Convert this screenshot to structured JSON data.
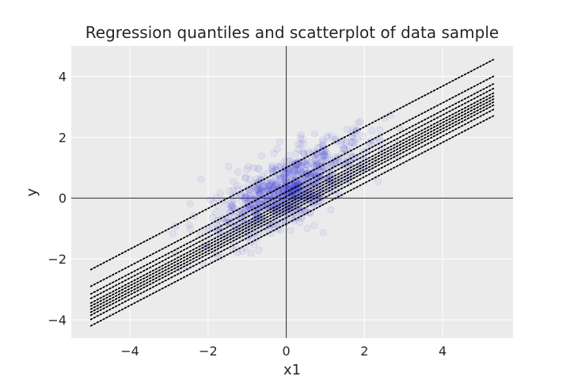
{
  "chart_data": {
    "type": "scatter",
    "title": "Regression quantiles and scatterplot of data sample",
    "xlabel": "x1",
    "ylabel": "y",
    "xlim": [
      -5.5,
      5.8
    ],
    "ylim": [
      -4.6,
      5.0
    ],
    "x_ticks": [
      -4,
      -2,
      0,
      2,
      4
    ],
    "y_ticks": [
      -4,
      -2,
      0,
      2,
      4
    ],
    "x_tick_labels": [
      "−4",
      "−2",
      "0",
      "2",
      "4"
    ],
    "y_tick_labels": [
      "−4",
      "−2",
      "0",
      "2",
      "4"
    ],
    "grid": true,
    "reference_lines": {
      "x": 0,
      "y": 0
    },
    "colors": {
      "background": "#ebebeb",
      "grid": "#ffffff",
      "points": "#3b32d9",
      "lines": "#000000",
      "reference": "#262626"
    },
    "lines": {
      "style": "dotted",
      "x_range": [
        -5.0,
        5.3
      ],
      "slope": 0.67,
      "intercepts": [
        -0.85,
        -0.64,
        -0.5,
        -0.4,
        -0.3,
        -0.2,
        -0.1,
        0.05,
        0.2,
        0.45,
        1.0
      ]
    },
    "scatter_summary": {
      "count": 1000,
      "x_range": [
        -2.9,
        3.0
      ],
      "y_range": [
        -3.5,
        3.3
      ],
      "opacity": 0.06
    }
  }
}
